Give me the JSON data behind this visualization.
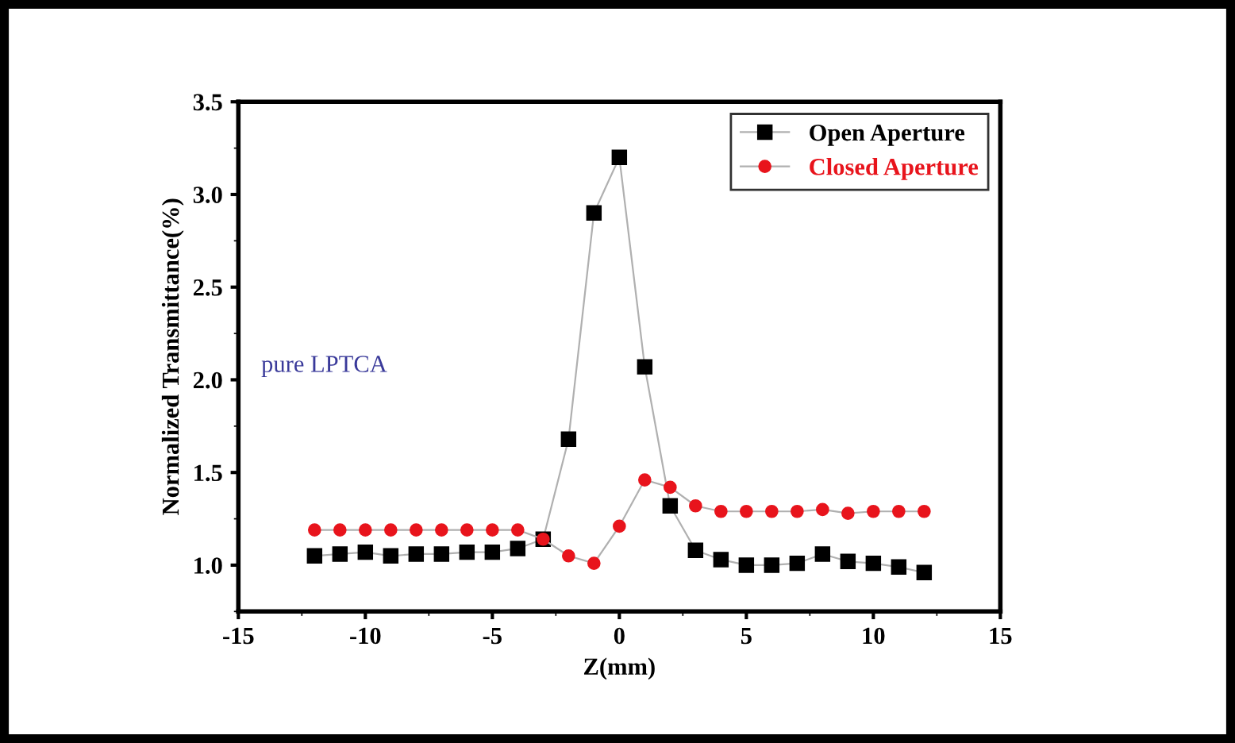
{
  "chart_data": {
    "type": "line",
    "xlabel": "Z(mm)",
    "ylabel": "Normalized Transmittance(%)",
    "annotations": [
      "pure LPTCA"
    ],
    "x": [
      -12,
      -11,
      -10,
      -9,
      -8,
      -7,
      -6,
      -5,
      -4,
      -3,
      -2,
      -1,
      0,
      1,
      2,
      3,
      4,
      5,
      6,
      7,
      8,
      9,
      10,
      11,
      12
    ],
    "series": [
      {
        "name": "Open Aperture",
        "color": "#000000",
        "marker": "square",
        "values": [
          1.05,
          1.06,
          1.07,
          1.05,
          1.06,
          1.06,
          1.07,
          1.07,
          1.09,
          1.14,
          1.68,
          2.9,
          3.2,
          2.07,
          1.32,
          1.08,
          1.03,
          1.0,
          1.0,
          1.01,
          1.06,
          1.02,
          1.01,
          0.99,
          0.96
        ]
      },
      {
        "name": "Closed Aperture",
        "color": "#e8141c",
        "marker": "circle",
        "values": [
          1.19,
          1.19,
          1.19,
          1.19,
          1.19,
          1.19,
          1.19,
          1.19,
          1.19,
          1.14,
          1.05,
          1.01,
          1.21,
          1.46,
          1.42,
          1.32,
          1.29,
          1.29,
          1.29,
          1.29,
          1.3,
          1.28,
          1.29,
          1.29,
          1.29
        ]
      }
    ],
    "xlim": [
      -15,
      15
    ],
    "xticks": [
      -15,
      -10,
      -5,
      0,
      5,
      10,
      15
    ],
    "ylim": [
      0.75,
      3.5
    ],
    "yticks": [
      {
        "value": 1.0,
        "label": "1.0"
      },
      {
        "value": 1.5,
        "label": "1.5"
      },
      {
        "value": 2.0,
        "label": "2.0"
      },
      {
        "value": 2.5,
        "label": "2.5"
      },
      {
        "value": 3.0,
        "label": "3.0"
      },
      {
        "value": 3.5,
        "label": "3.5"
      }
    ],
    "grid": false,
    "legend": "top right",
    "line_style": "solid"
  }
}
